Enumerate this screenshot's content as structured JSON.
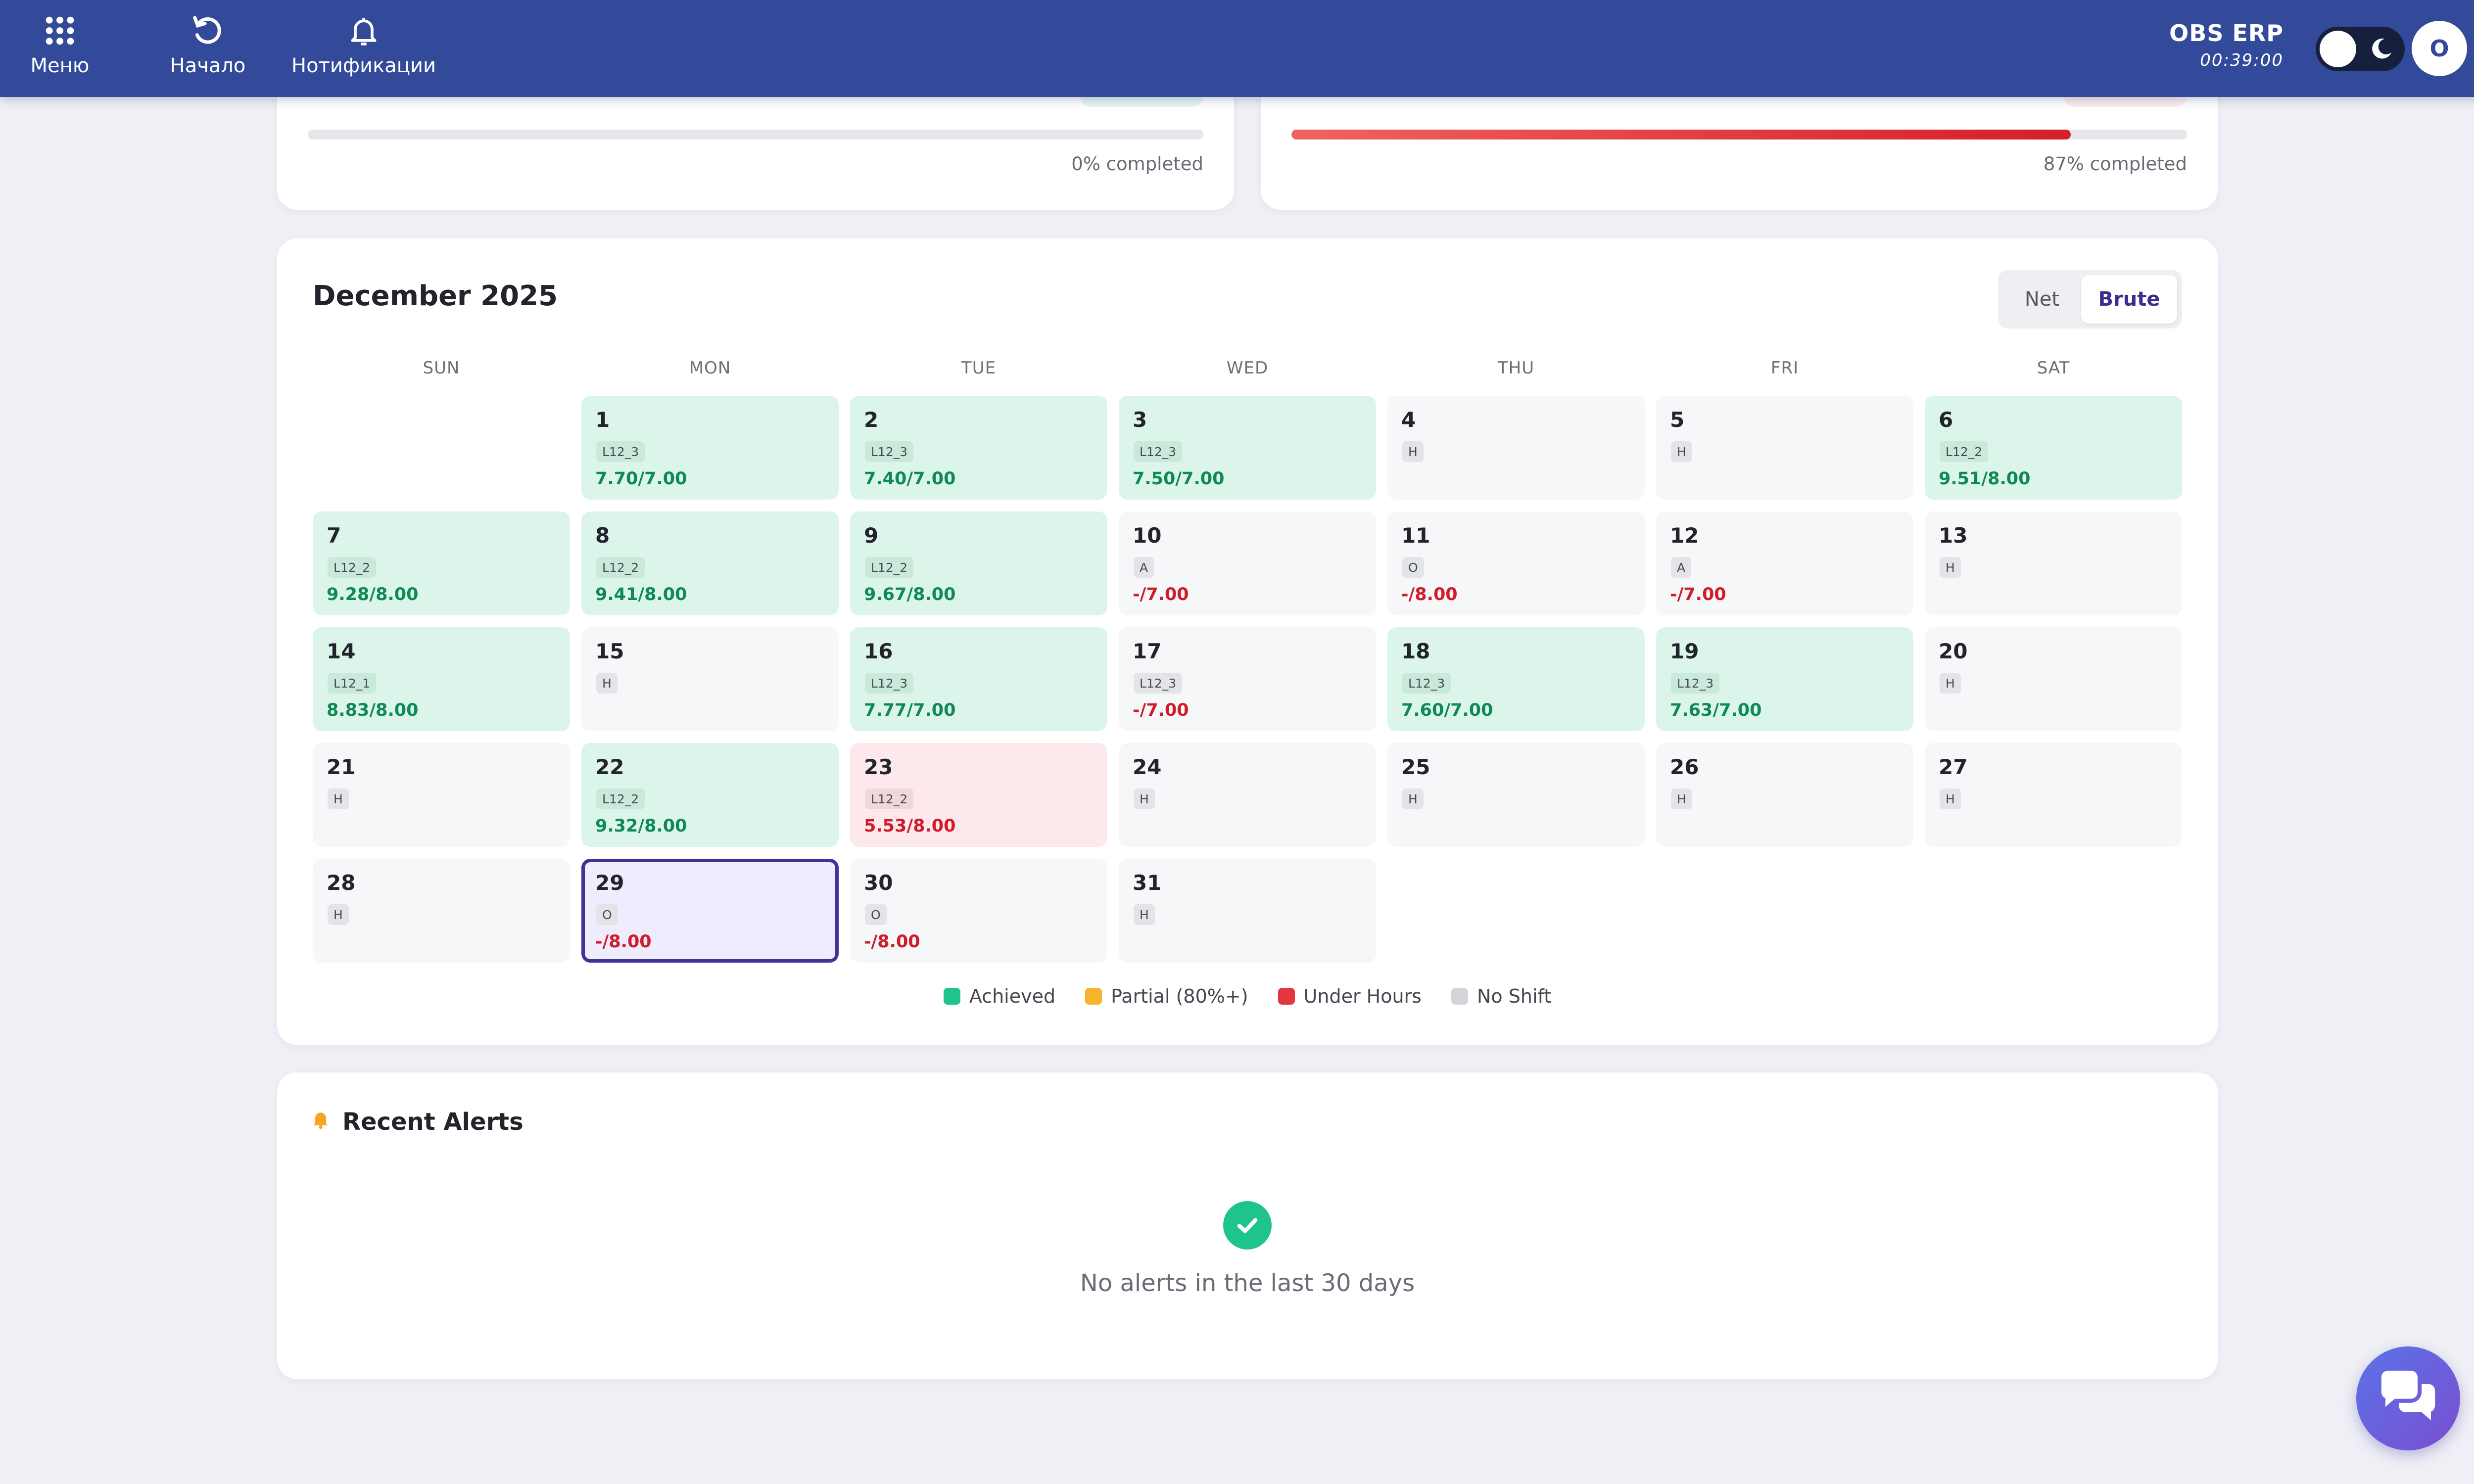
{
  "topbar": {
    "menu_label": "Меню",
    "home_label": "Начало",
    "notifications_label": "Нотификации",
    "brand_name": "OBS ERP",
    "clock": "00:39:00",
    "avatar_initial": "O"
  },
  "progress": {
    "left": {
      "text": "0% completed",
      "fraction": 0.0
    },
    "right": {
      "text": "87% completed",
      "fraction": 0.87
    }
  },
  "calendar": {
    "title": "December 2025",
    "toggle": {
      "net_label": "Net",
      "brute_label": "Brute",
      "selected": "Brute"
    },
    "weekdays": [
      "SUN",
      "MON",
      "TUE",
      "WED",
      "THU",
      "FRI",
      "SAT"
    ],
    "days": [
      {
        "num": "1",
        "badge": "L12_3",
        "hours": "7.70/7.00",
        "status": "achieved"
      },
      {
        "num": "2",
        "badge": "L12_3",
        "hours": "7.40/7.00",
        "status": "achieved"
      },
      {
        "num": "3",
        "badge": "L12_3",
        "hours": "7.50/7.00",
        "status": "achieved"
      },
      {
        "num": "4",
        "badge": "H",
        "hours": "",
        "status": "none"
      },
      {
        "num": "5",
        "badge": "H",
        "hours": "",
        "status": "none"
      },
      {
        "num": "6",
        "badge": "L12_2",
        "hours": "9.51/8.00",
        "status": "achieved"
      },
      {
        "num": "7",
        "badge": "L12_2",
        "hours": "9.28/8.00",
        "status": "achieved"
      },
      {
        "num": "8",
        "badge": "L12_2",
        "hours": "9.41/8.00",
        "status": "achieved"
      },
      {
        "num": "9",
        "badge": "L12_2",
        "hours": "9.67/8.00",
        "status": "achieved"
      },
      {
        "num": "10",
        "badge": "A",
        "hours": "-/7.00",
        "status": "missed"
      },
      {
        "num": "11",
        "badge": "O",
        "hours": "-/8.00",
        "status": "missed"
      },
      {
        "num": "12",
        "badge": "A",
        "hours": "-/7.00",
        "status": "missed"
      },
      {
        "num": "13",
        "badge": "H",
        "hours": "",
        "status": "none"
      },
      {
        "num": "14",
        "badge": "L12_1",
        "hours": "8.83/8.00",
        "status": "achieved"
      },
      {
        "num": "15",
        "badge": "H",
        "hours": "",
        "status": "none"
      },
      {
        "num": "16",
        "badge": "L12_3",
        "hours": "7.77/7.00",
        "status": "achieved"
      },
      {
        "num": "17",
        "badge": "L12_3",
        "hours": "-/7.00",
        "status": "missed"
      },
      {
        "num": "18",
        "badge": "L12_3",
        "hours": "7.60/7.00",
        "status": "achieved"
      },
      {
        "num": "19",
        "badge": "L12_3",
        "hours": "7.63/7.00",
        "status": "achieved"
      },
      {
        "num": "20",
        "badge": "H",
        "hours": "",
        "status": "none"
      },
      {
        "num": "21",
        "badge": "H",
        "hours": "",
        "status": "none"
      },
      {
        "num": "22",
        "badge": "L12_2",
        "hours": "9.32/8.00",
        "status": "achieved"
      },
      {
        "num": "23",
        "badge": "L12_2",
        "hours": "5.53/8.00",
        "status": "under"
      },
      {
        "num": "24",
        "badge": "H",
        "hours": "",
        "status": "none"
      },
      {
        "num": "25",
        "badge": "H",
        "hours": "",
        "status": "none"
      },
      {
        "num": "26",
        "badge": "H",
        "hours": "",
        "status": "none"
      },
      {
        "num": "27",
        "badge": "H",
        "hours": "",
        "status": "none"
      },
      {
        "num": "28",
        "badge": "H",
        "hours": "",
        "status": "none"
      },
      {
        "num": "29",
        "badge": "O",
        "hours": "-/8.00",
        "status": "selected"
      },
      {
        "num": "30",
        "badge": "O",
        "hours": "-/8.00",
        "status": "missed"
      },
      {
        "num": "31",
        "badge": "H",
        "hours": "",
        "status": "none"
      }
    ],
    "legend": [
      {
        "label": "Achieved",
        "color": "#1fc48a"
      },
      {
        "label": "Partial (80%+)",
        "color": "#f7b52c"
      },
      {
        "label": "Under Hours",
        "color": "#e5353f"
      },
      {
        "label": "No Shift",
        "color": "#d3d4da"
      }
    ]
  },
  "alerts": {
    "title": "Recent Alerts",
    "empty_text": "No alerts in the last 30 days"
  },
  "colors": {
    "topbar": "#334a9a",
    "achieved_bg": "#dcf5ea",
    "under_bg": "#fde9eb",
    "selected_border": "#3d3596"
  }
}
